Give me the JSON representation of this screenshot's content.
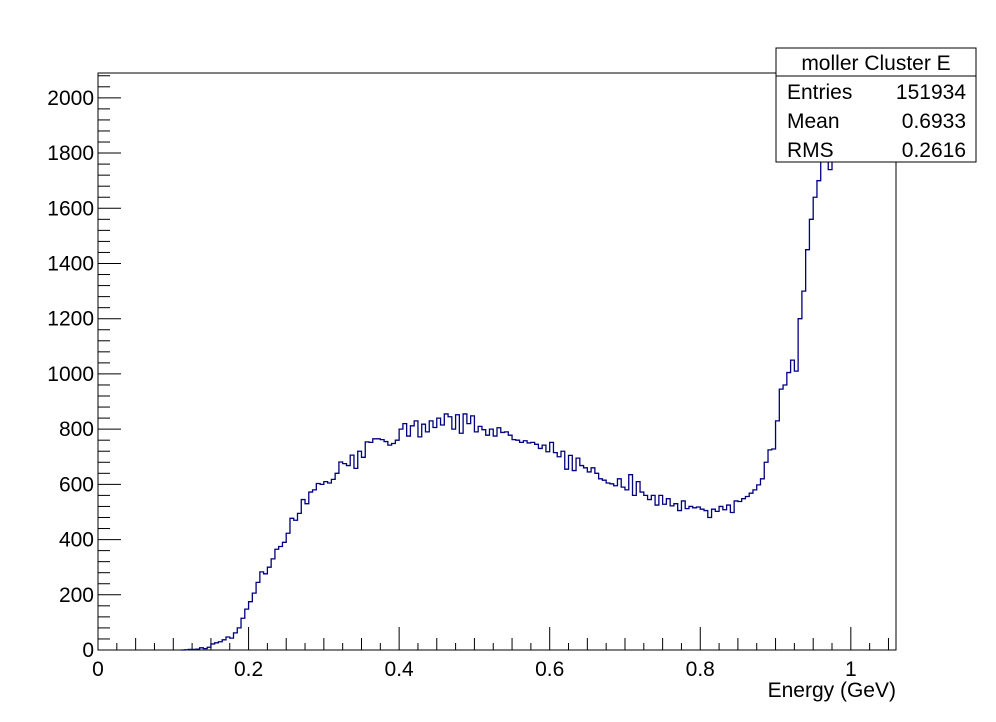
{
  "chart_data": {
    "type": "histogram",
    "xlabel": "Energy (GeV)",
    "ylabel": "",
    "xlim": [
      0,
      1.06
    ],
    "ylim": [
      0,
      2090
    ],
    "grid": false,
    "line_color": "#000080",
    "x_major_ticks": [
      0,
      0.2,
      0.4,
      0.6,
      0.8,
      1
    ],
    "x_tick_labels": [
      "0",
      "0.2",
      "0.4",
      "0.6",
      "0.8",
      "1"
    ],
    "y_major_ticks": [
      0,
      200,
      400,
      600,
      800,
      1000,
      1200,
      1400,
      1600,
      1800,
      2000
    ],
    "y_tick_labels": [
      "0",
      "200",
      "400",
      "600",
      "800",
      "1000",
      "1200",
      "1400",
      "1600",
      "1800",
      "2000"
    ],
    "bin_width": 0.005,
    "bin_start": 0.11,
    "values": [
      0,
      1,
      2,
      2,
      3,
      8,
      5,
      10,
      22,
      26,
      30,
      37,
      47,
      43,
      62,
      80,
      115,
      148,
      175,
      206,
      245,
      283,
      276,
      300,
      330,
      365,
      375,
      390,
      423,
      477,
      470,
      495,
      545,
      530,
      572,
      580,
      603,
      600,
      610,
      605,
      618,
      640,
      681,
      675,
      668,
      706,
      658,
      720,
      698,
      754,
      752,
      765,
      765,
      762,
      755,
      742,
      748,
      760,
      800,
      820,
      775,
      812,
      830,
      772,
      818,
      790,
      830,
      806,
      840,
      815,
      855,
      845,
      800,
      852,
      785,
      855,
      820,
      848,
      790,
      810,
      798,
      778,
      800,
      775,
      805,
      788,
      790,
      778,
      762,
      760,
      752,
      758,
      750,
      752,
      745,
      730,
      742,
      718,
      752,
      715,
      700,
      720,
      655,
      705,
      650,
      695,
      668,
      660,
      645,
      660,
      640,
      620,
      615,
      605,
      602,
      595,
      620,
      590,
      580,
      635,
      560,
      610,
      572,
      560,
      545,
      560,
      525,
      560,
      528,
      548,
      522,
      530,
      505,
      540,
      512,
      520,
      515,
      518,
      510,
      505,
      480,
      510,
      502,
      520,
      508,
      525,
      498,
      540,
      538,
      548,
      556,
      568,
      580,
      598,
      620,
      680,
      725,
      728,
      830,
      945,
      960,
      1005,
      1050,
      1010,
      1200,
      1300,
      1450,
      1560,
      1640,
      1700,
      1780,
      1860,
      1740,
      1900,
      1970,
      2050
    ]
  },
  "stats_box": {
    "title": "moller Cluster E",
    "rows": [
      {
        "label": "Entries",
        "value": "151934"
      },
      {
        "label": "Mean",
        "value": "0.6933"
      },
      {
        "label": "RMS",
        "value": "0.2616"
      }
    ]
  }
}
